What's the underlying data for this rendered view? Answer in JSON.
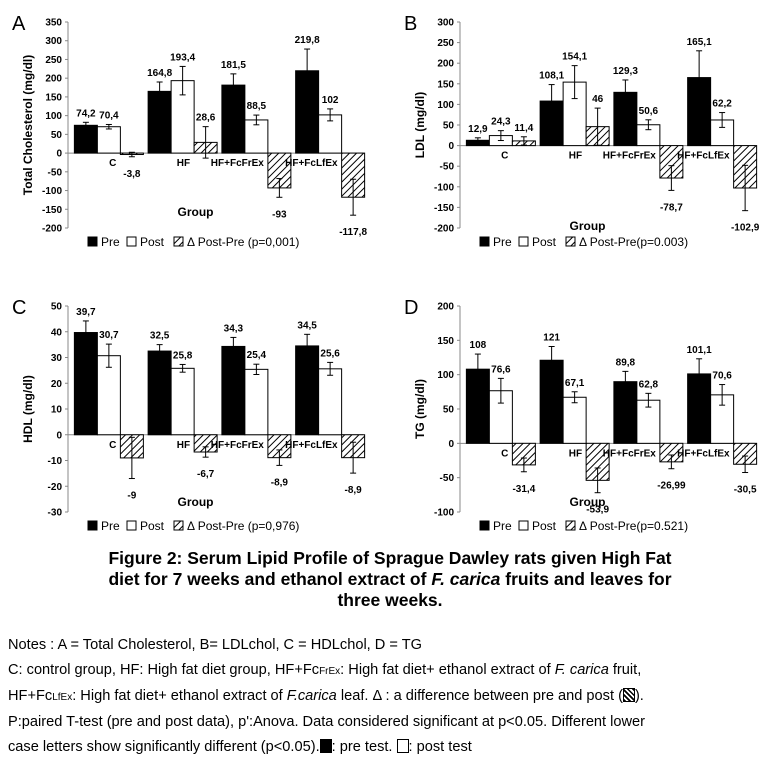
{
  "chart_data": [
    {
      "panel": "A",
      "type": "bar",
      "ylabel": "Total Cholesterol (mg/dl)",
      "xlabel": "Group",
      "categories": [
        "C",
        "HF",
        "HF+FcFrEx",
        "HF+FcLfEx"
      ],
      "ylim": [
        -200,
        350
      ],
      "yticks": [
        -200,
        -150,
        -100,
        -50,
        0,
        50,
        100,
        150,
        200,
        250,
        300,
        350
      ],
      "series": [
        {
          "name": "Pre",
          "values": [
            74.2,
            164.8,
            181.5,
            219.8
          ],
          "labels": [
            "74,2",
            "164,8",
            "181,5",
            "219,8"
          ]
        },
        {
          "name": "Post",
          "values": [
            70.4,
            193.4,
            88.5,
            102
          ],
          "labels": [
            "70,4",
            "193,4",
            "88,5",
            "102"
          ]
        },
        {
          "name": "Δ Post-Pre (p=0,001)",
          "values": [
            -3.8,
            28.6,
            -93,
            -117.8
          ],
          "labels": [
            "-3,8",
            "28,6",
            "-93",
            "-117,8"
          ]
        }
      ],
      "errors": [
        [
          8,
          25,
          30,
          58
        ],
        [
          6,
          38,
          13,
          16
        ],
        [
          6,
          42,
          25,
          48
        ]
      ]
    },
    {
      "panel": "B",
      "type": "bar",
      "ylabel": "LDL (mg/dl)",
      "xlabel": "Group",
      "categories": [
        "C",
        "HF",
        "HF+FcFrEx",
        "HF+FcLfEx"
      ],
      "ylim": [
        -200,
        300
      ],
      "yticks": [
        -200,
        -150,
        -100,
        -50,
        0,
        50,
        100,
        150,
        200,
        250,
        300
      ],
      "series": [
        {
          "name": "Pre",
          "values": [
            12.9,
            108.1,
            129.3,
            165.1
          ],
          "labels": [
            "12,9",
            "108,1",
            "129,3",
            "165,1"
          ]
        },
        {
          "name": "Post",
          "values": [
            24.3,
            154.1,
            50.6,
            62.2
          ],
          "labels": [
            "24,3",
            "154,1",
            "50,6",
            "62,2"
          ]
        },
        {
          "name": "Δ Post-Pre(p=0.003)",
          "values": [
            11.4,
            46,
            -78.7,
            -102.9
          ],
          "labels": [
            "11,4",
            "46",
            "-78,7",
            "-102,9"
          ]
        }
      ],
      "errors": [
        [
          6,
          40,
          30,
          65
        ],
        [
          12,
          40,
          12,
          18
        ],
        [
          10,
          45,
          30,
          55
        ]
      ]
    },
    {
      "panel": "C",
      "type": "bar",
      "ylabel": "HDL (mg/dl)",
      "xlabel": "Group",
      "categories": [
        "C",
        "HF",
        "HF+FcFrEx",
        "HF+FcLfEx"
      ],
      "ylim": [
        -30,
        50
      ],
      "yticks": [
        -30,
        -20,
        -10,
        0,
        10,
        20,
        30,
        40,
        50
      ],
      "series": [
        {
          "name": "Pre",
          "values": [
            39.7,
            32.5,
            34.3,
            34.5
          ],
          "labels": [
            "39,7",
            "32,5",
            "34,3",
            "34,5"
          ]
        },
        {
          "name": "Post",
          "values": [
            30.7,
            25.8,
            25.4,
            25.6
          ],
          "labels": [
            "30,7",
            "25,8",
            "25,4",
            "25,6"
          ]
        },
        {
          "name": "Δ Post-Pre (p=0,976)",
          "values": [
            -9,
            -6.7,
            -8.9,
            -8.9
          ],
          "labels": [
            "-9",
            "-6,7",
            "-8,9",
            "-8,9"
          ]
        }
      ],
      "errors": [
        [
          4.5,
          2.5,
          3.5,
          4.5
        ],
        [
          4.5,
          1.5,
          2,
          2.5
        ],
        [
          8,
          2,
          3,
          6
        ]
      ]
    },
    {
      "panel": "D",
      "type": "bar",
      "ylabel": "TG (mg/dl)",
      "xlabel": "Group",
      "categories": [
        "C",
        "HF",
        "HF+FcFrEx",
        "HF+FcLfEx"
      ],
      "ylim": [
        -100,
        200
      ],
      "yticks": [
        -100,
        -50,
        0,
        50,
        100,
        150,
        200
      ],
      "series": [
        {
          "name": "Pre",
          "values": [
            108,
            121,
            89.8,
            101.1
          ],
          "labels": [
            "108",
            "121",
            "89,8",
            "101,1"
          ]
        },
        {
          "name": "Post",
          "values": [
            76.6,
            67.1,
            62.8,
            70.6
          ],
          "labels": [
            "76,6",
            "67,1",
            "62,8",
            "70,6"
          ]
        },
        {
          "name": "Δ Post-Pre(p=0.521)",
          "values": [
            -31.4,
            -53.9,
            -26.99,
            -30.5
          ],
          "labels": [
            "-31,4",
            "-53,9",
            "-26,99",
            "-30,5"
          ]
        }
      ],
      "errors": [
        [
          22,
          20,
          15,
          22
        ],
        [
          18,
          8,
          10,
          15
        ],
        [
          10,
          18,
          10,
          12
        ]
      ]
    }
  ],
  "colors": {
    "pre": "#000000",
    "post": "#ffffff",
    "delta_hatch": "#000000"
  },
  "caption": {
    "line1": "Figure 2: Serum Lipid Profile of Sprague Dawley rats given High Fat",
    "line2_a": "diet for 7 weeks and ethanol extract of ",
    "line2_italic": "F. carica",
    "line2_b": " fruits and leaves for",
    "line3": "three weeks."
  },
  "notes": {
    "line1": "Notes : A = Total Cholesterol, B= LDLchol, C = HDLchol, D = TG",
    "line2_a": "C: control group, HF: High fat diet group, HF+Fc",
    "line2_sub": "FrEx",
    "line2_b": ": High fat diet+ ethanol extract of ",
    "line2_italic": "F. carica",
    "line2_c": " fruit,",
    "line3_a": "HF+Fc",
    "line3_sub": "LfEx",
    "line3_b": ": High fat diet+ ethanol extract of ",
    "line3_italic": "F.carica",
    "line3_c": " leaf. Δ : a difference between pre and post (",
    "line3_d": ").",
    "line4": "P:paired T-test (pre and post data), p':Anova. Data considered significant at p<0.05. Different lower",
    "line5_a": "case letters show significantly different (p<0.05).",
    "line5_b": ": pre test. ",
    "line5_c": ": post test"
  }
}
